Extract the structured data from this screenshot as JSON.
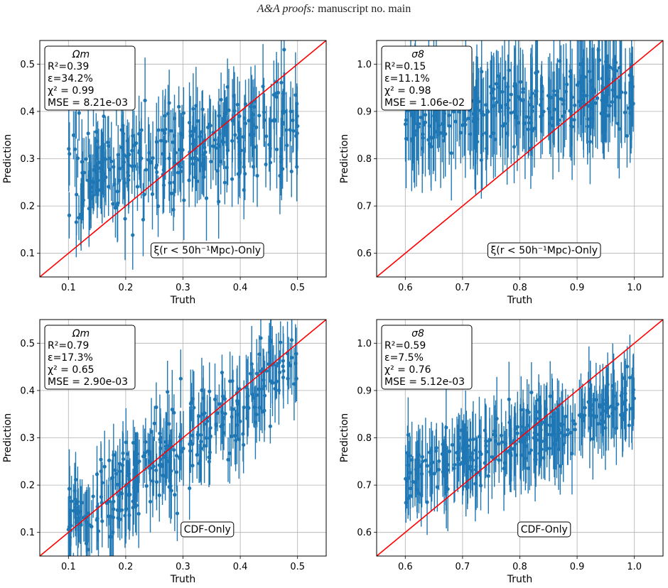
{
  "header": {
    "journal": "A&A proofs:",
    "rest": "manuscript no. main"
  },
  "colors": {
    "points": "#1f77b4",
    "identity_line": "#ff0000",
    "grid": "#b0b0b0"
  },
  "chart_data": [
    {
      "type": "scatter",
      "param": "Ωm",
      "stats": [
        "R²=0.39",
        "ε=34.2%",
        "χ² = 0.99",
        "MSE = 8.21e-03"
      ],
      "annotation": "ξ(r < 50h⁻¹Mpc)-Only",
      "xlabel": "Truth",
      "ylabel": "Prediction",
      "xlim": [
        0.05,
        0.55
      ],
      "ylim": [
        0.05,
        0.55
      ],
      "xticks": [
        "0.1",
        "0.2",
        "0.3",
        "0.4",
        "0.5"
      ],
      "yticks": [
        "0.1",
        "0.2",
        "0.3",
        "0.4",
        "0.5"
      ],
      "grid": true,
      "identity_line": true,
      "points": {
        "x_range": [
          0.1,
          0.5
        ],
        "count": 300,
        "pred_mean": 0.23,
        "pred_slope": 0.28,
        "scatter": 0.055,
        "err_mean": 0.065
      }
    },
    {
      "type": "scatter",
      "param": "σ8",
      "stats": [
        "R²=0.15",
        "ε=11.1%",
        "χ² = 0.98",
        "MSE = 1.06e-02"
      ],
      "annotation": "ξ(r < 50h⁻¹Mpc)-Only",
      "xlabel": "Truth",
      "ylabel": "Prediction",
      "xlim": [
        0.55,
        1.05
      ],
      "ylim": [
        0.55,
        1.05
      ],
      "xticks": [
        "0.6",
        "0.7",
        "0.8",
        "0.9",
        "1.0"
      ],
      "yticks": [
        "0.6",
        "0.7",
        "0.8",
        "0.9",
        "1.0"
      ],
      "grid": true,
      "identity_line": true,
      "points": {
        "x_range": [
          0.6,
          1.0
        ],
        "count": 300,
        "pred_mean": 0.79,
        "pred_slope": 0.15,
        "scatter": 0.04,
        "err_mean": 0.085
      }
    },
    {
      "type": "scatter",
      "param": "Ωm",
      "stats": [
        "R²=0.79",
        "ε=17.3%",
        "χ² = 0.65",
        "MSE = 2.90e-03"
      ],
      "annotation": "CDF-Only",
      "xlabel": "Truth",
      "ylabel": "Prediction",
      "xlim": [
        0.05,
        0.55
      ],
      "ylim": [
        0.05,
        0.55
      ],
      "xticks": [
        "0.1",
        "0.2",
        "0.3",
        "0.4",
        "0.5"
      ],
      "yticks": [
        "0.1",
        "0.2",
        "0.3",
        "0.4",
        "0.5"
      ],
      "grid": true,
      "identity_line": true,
      "points": {
        "x_range": [
          0.1,
          0.5
        ],
        "count": 300,
        "pred_mean": 0.03,
        "pred_slope": 0.85,
        "scatter": 0.045,
        "err_mean": 0.06
      }
    },
    {
      "type": "scatter",
      "param": "σ8",
      "stats": [
        "R²=0.59",
        "ε=7.5%",
        "χ² = 0.76",
        "MSE = 5.12e-03"
      ],
      "annotation": "CDF-Only",
      "xlabel": "Truth",
      "ylabel": "Prediction",
      "xlim": [
        0.55,
        1.05
      ],
      "ylim": [
        0.55,
        1.05
      ],
      "xticks": [
        "0.6",
        "0.7",
        "0.8",
        "0.9",
        "1.0"
      ],
      "yticks": [
        "0.6",
        "0.7",
        "0.8",
        "0.9",
        "1.0"
      ],
      "grid": true,
      "identity_line": true,
      "points": {
        "x_range": [
          0.6,
          1.0
        ],
        "count": 300,
        "pred_mean": 0.48,
        "pred_slope": 0.4,
        "scatter": 0.03,
        "err_mean": 0.065
      }
    }
  ]
}
